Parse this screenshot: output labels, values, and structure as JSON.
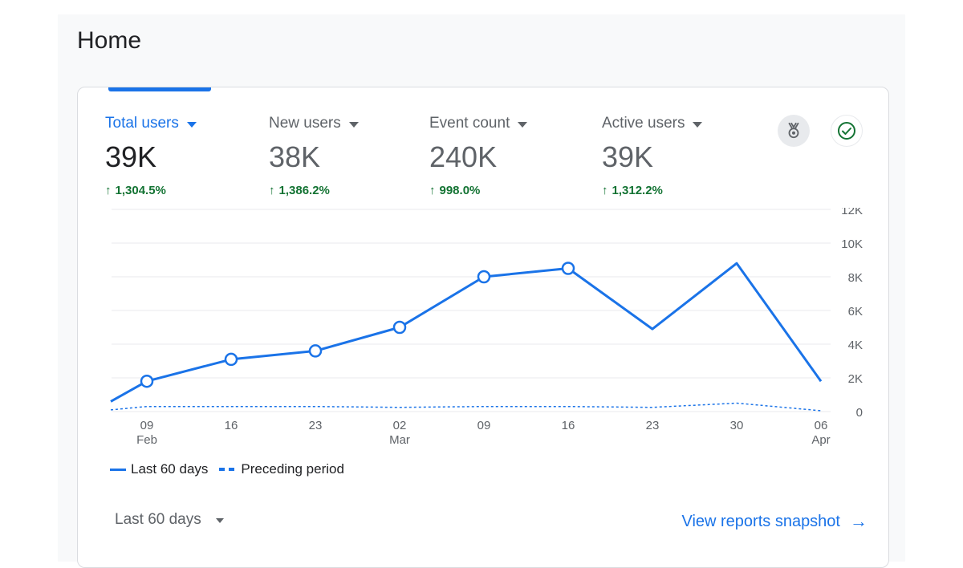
{
  "page": {
    "title": "Home"
  },
  "metrics": [
    {
      "label": "Total users",
      "value": "39K",
      "change": "1,304.5%",
      "active": true
    },
    {
      "label": "New users",
      "value": "38K",
      "change": "1,386.2%",
      "active": false
    },
    {
      "label": "Event count",
      "value": "240K",
      "change": "998.0%",
      "active": false
    },
    {
      "label": "Active users",
      "value": "39K",
      "change": "1,312.2%",
      "active": false
    }
  ],
  "icons": {
    "insights": "award-ribbon-icon",
    "status": "check-circle-icon",
    "status_color": "#137333"
  },
  "colors": {
    "accent": "#1a73e8",
    "positive": "#137333",
    "grid": "#e8eaed",
    "axis_text": "#5f6368"
  },
  "chart_data": {
    "type": "line",
    "ylim": [
      0,
      12000
    ],
    "y_ticks": [
      "0",
      "2K",
      "4K",
      "6K",
      "8K",
      "10K",
      "12K"
    ],
    "y_tick_values": [
      0,
      2000,
      4000,
      6000,
      8000,
      10000,
      12000
    ],
    "x_ticks": [
      {
        "label": "09",
        "sub": "Feb",
        "day": 0
      },
      {
        "label": "16",
        "sub": "",
        "day": 7
      },
      {
        "label": "23",
        "sub": "",
        "day": 14
      },
      {
        "label": "02",
        "sub": "Mar",
        "day": 21
      },
      {
        "label": "09",
        "sub": "",
        "day": 28
      },
      {
        "label": "16",
        "sub": "",
        "day": 35
      },
      {
        "label": "23",
        "sub": "",
        "day": 42
      },
      {
        "label": "30",
        "sub": "",
        "day": 49
      },
      {
        "label": "06",
        "sub": "Apr",
        "day": 56
      }
    ],
    "series": [
      {
        "name": "Last 60 days",
        "style": "solid",
        "points": [
          {
            "day": -3,
            "y": 600,
            "marker": false
          },
          {
            "day": 0,
            "y": 1800,
            "marker": true
          },
          {
            "day": 7,
            "y": 3100,
            "marker": true
          },
          {
            "day": 14,
            "y": 3600,
            "marker": true
          },
          {
            "day": 21,
            "y": 5000,
            "marker": true
          },
          {
            "day": 28,
            "y": 8000,
            "marker": true
          },
          {
            "day": 35,
            "y": 8500,
            "marker": true
          },
          {
            "day": 42,
            "y": 4900,
            "marker": false
          },
          {
            "day": 49,
            "y": 8800,
            "marker": false
          },
          {
            "day": 56,
            "y": 1800,
            "marker": false
          }
        ]
      },
      {
        "name": "Preceding period",
        "style": "dashed",
        "points": [
          {
            "day": -3,
            "y": 100
          },
          {
            "day": 0,
            "y": 300
          },
          {
            "day": 7,
            "y": 300
          },
          {
            "day": 14,
            "y": 300
          },
          {
            "day": 21,
            "y": 250
          },
          {
            "day": 28,
            "y": 300
          },
          {
            "day": 35,
            "y": 300
          },
          {
            "day": 42,
            "y": 250
          },
          {
            "day": 49,
            "y": 500
          },
          {
            "day": 56,
            "y": 50
          }
        ]
      }
    ],
    "legend": [
      "Last 60 days",
      "Preceding period"
    ],
    "grid": true
  },
  "footer": {
    "range_label": "Last 60 days",
    "link_label": "View reports snapshot"
  }
}
